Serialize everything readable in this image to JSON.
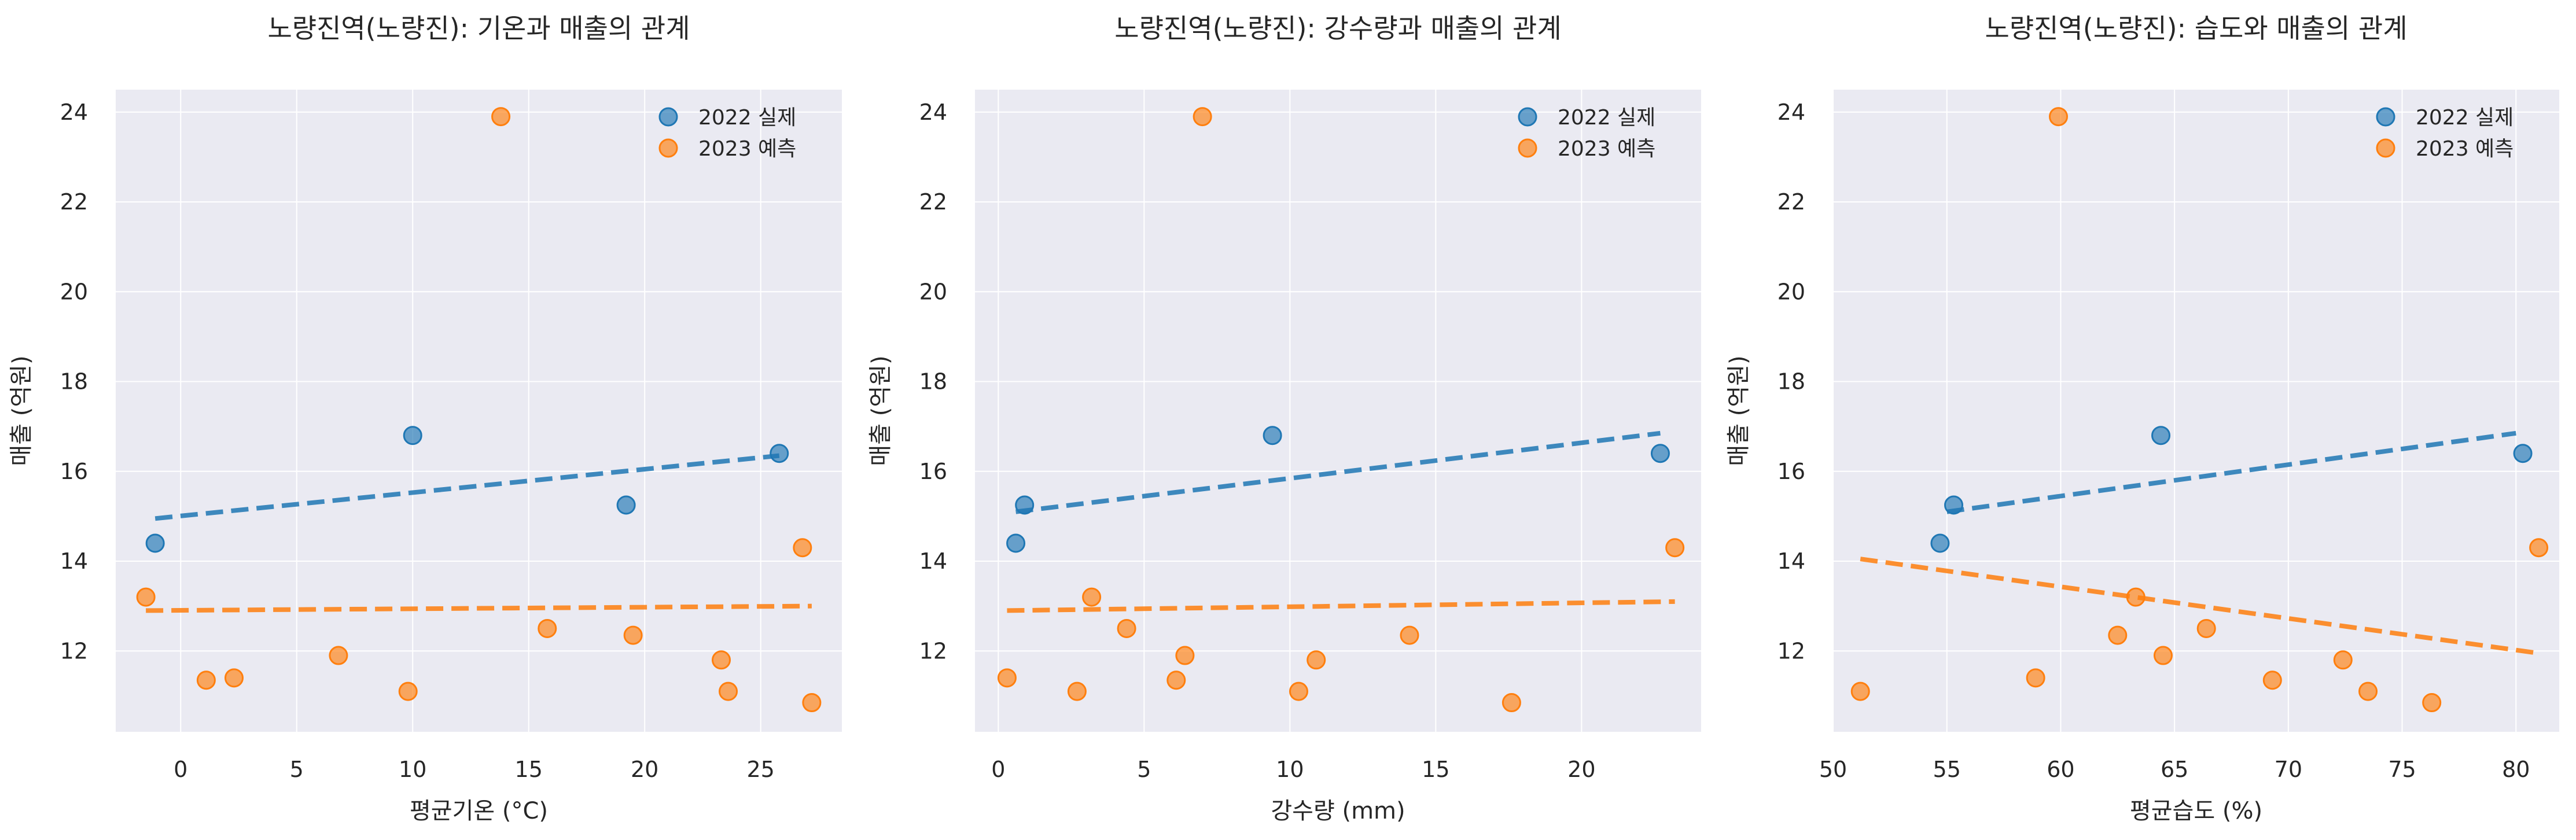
{
  "colors": {
    "series_2022": "#1f77b4",
    "series_2023": "#ff7f0e",
    "plot_background": "#eaeaf2",
    "grid": "#ffffff"
  },
  "legend": [
    "2022 실제",
    "2023 예측"
  ],
  "chart_data": [
    {
      "type": "scatter",
      "title": "노량진역(노량진): 기온과 매출의 관계",
      "xlabel": "평균기온 (°C)",
      "ylabel": "매출 (억원)",
      "xlim": [
        -2.8,
        28.5
      ],
      "ylim": [
        10.2,
        24.5
      ],
      "xticks": [
        0,
        5,
        10,
        15,
        20,
        25
      ],
      "yticks": [
        12,
        14,
        16,
        18,
        20,
        22,
        24
      ],
      "grid": true,
      "legend_position": "top-right",
      "series": [
        {
          "name": "2022 실제",
          "points": [
            [
              -1.1,
              14.4
            ],
            [
              10.0,
              16.8
            ],
            [
              19.2,
              15.25
            ],
            [
              25.8,
              16.4
            ]
          ],
          "trend": [
            [
              -1.1,
              14.95
            ],
            [
              25.8,
              16.35
            ]
          ]
        },
        {
          "name": "2023 예측",
          "points": [
            [
              -1.5,
              13.2
            ],
            [
              1.1,
              11.35
            ],
            [
              2.3,
              11.4
            ],
            [
              6.8,
              11.9
            ],
            [
              9.8,
              11.1
            ],
            [
              13.8,
              23.9
            ],
            [
              15.8,
              12.5
            ],
            [
              19.5,
              12.35
            ],
            [
              23.3,
              11.8
            ],
            [
              23.6,
              11.1
            ],
            [
              26.8,
              14.3
            ],
            [
              27.2,
              10.85
            ]
          ],
          "trend": [
            [
              -1.5,
              12.9
            ],
            [
              27.2,
              13.0
            ]
          ]
        }
      ]
    },
    {
      "type": "scatter",
      "title": "노량진역(노량진): 강수량과 매출의 관계",
      "xlabel": "강수량 (mm)",
      "ylabel": "매출 (억원)",
      "xlim": [
        -0.8,
        24.1
      ],
      "ylim": [
        10.2,
        24.5
      ],
      "xticks": [
        0,
        5,
        10,
        15,
        20
      ],
      "yticks": [
        12,
        14,
        16,
        18,
        20,
        22,
        24
      ],
      "grid": true,
      "legend_position": "top-right",
      "series": [
        {
          "name": "2022 실제",
          "points": [
            [
              0.6,
              14.4
            ],
            [
              0.9,
              15.25
            ],
            [
              9.4,
              16.8
            ],
            [
              22.7,
              16.4
            ]
          ],
          "trend": [
            [
              0.6,
              15.1
            ],
            [
              22.7,
              16.85
            ]
          ]
        },
        {
          "name": "2023 예측",
          "points": [
            [
              0.3,
              11.4
            ],
            [
              2.7,
              11.1
            ],
            [
              3.2,
              13.2
            ],
            [
              4.4,
              12.5
            ],
            [
              6.1,
              11.35
            ],
            [
              6.4,
              11.9
            ],
            [
              7.0,
              23.9
            ],
            [
              10.3,
              11.1
            ],
            [
              10.9,
              11.8
            ],
            [
              14.1,
              12.35
            ],
            [
              17.6,
              10.85
            ],
            [
              23.2,
              14.3
            ]
          ],
          "trend": [
            [
              0.3,
              12.9
            ],
            [
              23.2,
              13.1
            ]
          ]
        }
      ]
    },
    {
      "type": "scatter",
      "title": "노량진역(노량진): 습도와 매출의 관계",
      "xlabel": "평균습도 (%)",
      "ylabel": "매출 (억원)",
      "xlim": [
        50.0,
        81.9
      ],
      "ylim": [
        10.2,
        24.5
      ],
      "xticks": [
        50,
        55,
        60,
        65,
        70,
        75,
        80
      ],
      "yticks": [
        12,
        14,
        16,
        18,
        20,
        22,
        24
      ],
      "grid": true,
      "legend_position": "top-right",
      "series": [
        {
          "name": "2022 실제",
          "points": [
            [
              54.7,
              14.4
            ],
            [
              55.3,
              15.25
            ],
            [
              64.4,
              16.8
            ],
            [
              80.3,
              16.4
            ]
          ],
          "trend": [
            [
              55.0,
              15.1
            ],
            [
              80.0,
              16.85
            ]
          ]
        },
        {
          "name": "2023 예측",
          "points": [
            [
              51.2,
              11.1
            ],
            [
              58.9,
              11.4
            ],
            [
              59.9,
              23.9
            ],
            [
              62.5,
              12.35
            ],
            [
              63.3,
              13.2
            ],
            [
              64.5,
              11.9
            ],
            [
              66.4,
              12.5
            ],
            [
              69.3,
              11.35
            ],
            [
              72.4,
              11.8
            ],
            [
              73.5,
              11.1
            ],
            [
              76.3,
              10.85
            ],
            [
              81.0,
              14.3
            ]
          ],
          "trend": [
            [
              51.2,
              14.05
            ],
            [
              81.0,
              11.95
            ]
          ]
        }
      ]
    }
  ]
}
